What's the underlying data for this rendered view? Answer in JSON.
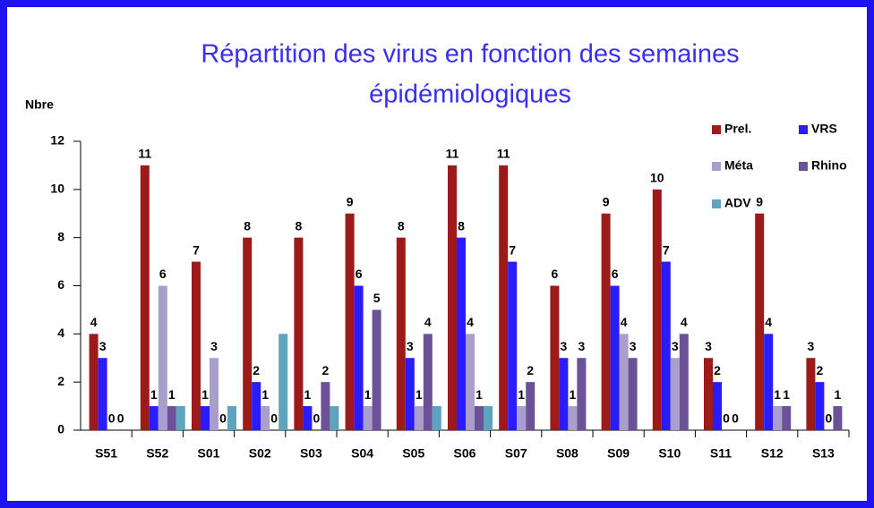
{
  "chart_data": {
    "type": "bar",
    "title": "Répartition des virus en fonction des semaines",
    "subtitle": "épidémiologiques",
    "y_label": "Nbre",
    "categories": [
      "S51",
      "S52",
      "S01",
      "S02",
      "S03",
      "S04",
      "S05",
      "S06",
      "S07",
      "S08",
      "S09",
      "S10",
      "S11",
      "S12",
      "S13"
    ],
    "series": [
      {
        "name": "Prel.",
        "color": "#9b1b1b",
        "data_labels": true,
        "values": [
          4,
          11,
          7,
          8,
          8,
          9,
          8,
          11,
          11,
          6,
          9,
          10,
          3,
          9,
          3
        ]
      },
      {
        "name": "VRS",
        "color": "#2a1cff",
        "data_labels": true,
        "values": [
          3,
          1,
          1,
          2,
          1,
          6,
          3,
          8,
          7,
          3,
          6,
          7,
          2,
          4,
          2
        ]
      },
      {
        "name": "Méta",
        "color": "#aa9fca",
        "data_labels": true,
        "values": [
          0,
          6,
          3,
          1,
          0,
          1,
          1,
          4,
          1,
          1,
          4,
          3,
          0,
          1,
          0
        ]
      },
      {
        "name": "Rhino",
        "color": "#6b5198",
        "data_labels": true,
        "values": [
          0,
          1,
          0,
          0,
          2,
          5,
          4,
          1,
          2,
          3,
          3,
          4,
          0,
          1,
          1
        ]
      },
      {
        "name": "ADV",
        "color": "#5fa4bf",
        "data_labels": false,
        "values": [
          0,
          1,
          1,
          4,
          1,
          0,
          1,
          1,
          0,
          0,
          0,
          0,
          0,
          0,
          0
        ]
      }
    ],
    "ylim": [
      0,
      12
    ],
    "yticks": [
      0,
      2,
      4,
      6,
      8,
      10,
      12
    ],
    "legend": "top-right"
  }
}
